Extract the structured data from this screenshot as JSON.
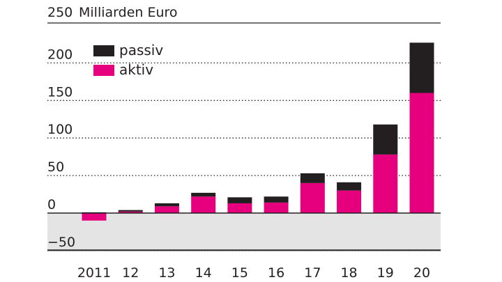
{
  "chart_data": {
    "type": "bar",
    "stacked": true,
    "unit_label": "Milliarden Euro",
    "top_tick": "250",
    "categories": [
      "2011",
      "12",
      "13",
      "14",
      "15",
      "16",
      "17",
      "18",
      "19",
      "20"
    ],
    "series": [
      {
        "name": "aktiv",
        "color": "#e6007e",
        "values": [
          -10,
          2,
          9,
          22,
          13,
          14,
          40,
          30,
          78,
          160
        ]
      },
      {
        "name": "passiv",
        "color": "#231f20",
        "values": [
          1,
          2,
          4,
          5,
          8,
          8,
          13,
          11,
          40,
          67
        ]
      }
    ],
    "yticks": [
      200,
      150,
      100,
      50,
      0,
      -50
    ],
    "ytick_labels": [
      "200",
      "150",
      "100",
      "50",
      "0",
      "−50"
    ],
    "ylim": [
      -50,
      250
    ],
    "negative_band_color": "#e4e4e4",
    "grid": "dotted",
    "legend": {
      "position": "top-left",
      "order": [
        "passiv",
        "aktiv"
      ]
    }
  }
}
